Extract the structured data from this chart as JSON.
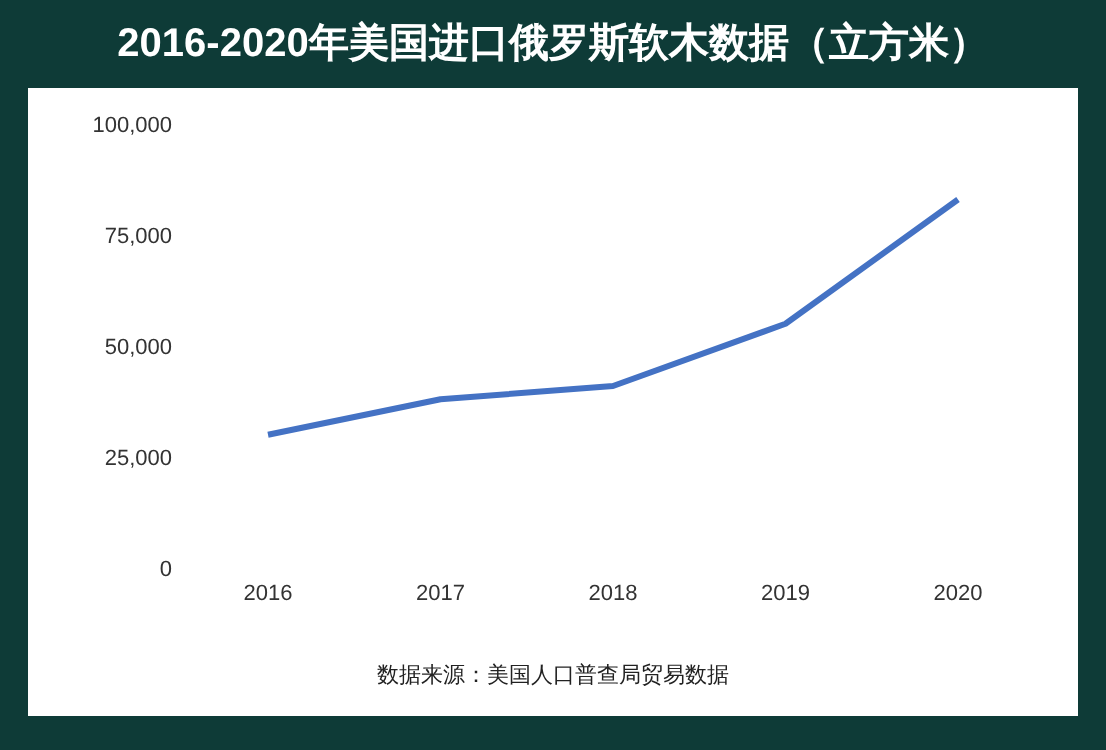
{
  "chart_data": {
    "type": "line",
    "title": "2016-2020年美国进口俄罗斯软木数据（立方米）",
    "categories": [
      "2016",
      "2017",
      "2018",
      "2019",
      "2020"
    ],
    "series": [
      {
        "color": "#4472c4",
        "values": [
          30000,
          38000,
          41000,
          55000,
          83000
        ]
      }
    ],
    "ylim": [
      0,
      100000
    ],
    "yticks": [
      {
        "value": 0,
        "label": "0"
      },
      {
        "value": 25000,
        "label": "25,000"
      },
      {
        "value": 50000,
        "label": "50,000"
      },
      {
        "value": 75000,
        "label": "75,000"
      },
      {
        "value": 100000,
        "label": "100,000"
      }
    ],
    "grid": false,
    "marker": "none",
    "line_style": "solid",
    "annotations": [
      "数据来源：美国人口普查局贸易数据"
    ]
  }
}
